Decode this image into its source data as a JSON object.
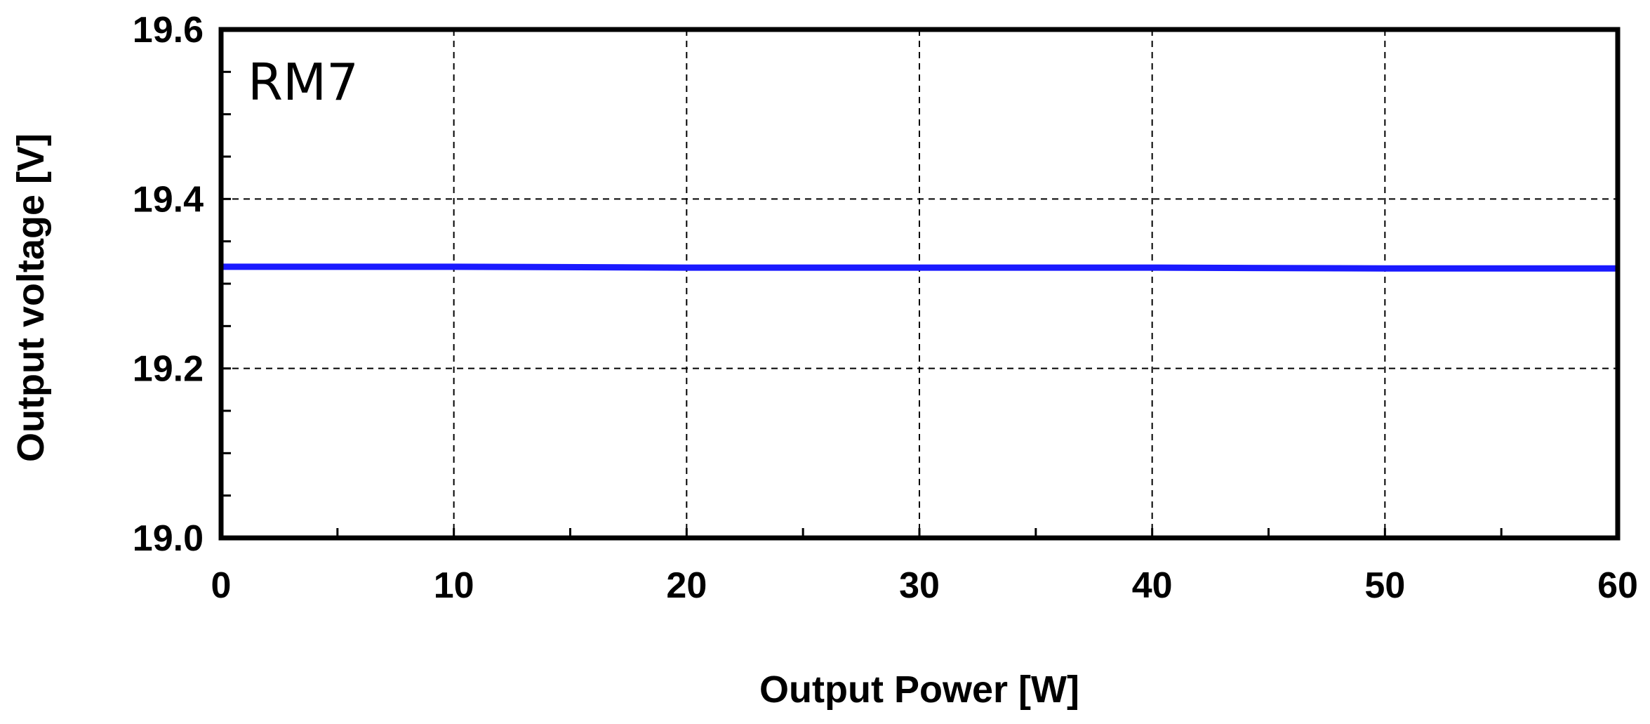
{
  "chart_data": {
    "type": "line",
    "title": "",
    "annotation": "RM7",
    "xlabel": "Output Power [W]",
    "ylabel": "Output voltage [V]",
    "xlim": [
      0,
      60
    ],
    "ylim": [
      19.0,
      19.6
    ],
    "x_ticks": [
      0,
      10,
      20,
      30,
      40,
      50,
      60
    ],
    "x_tick_labels": [
      "0",
      "10",
      "20",
      "30",
      "40",
      "50",
      "60"
    ],
    "y_ticks": [
      19.0,
      19.2,
      19.4,
      19.6
    ],
    "y_tick_labels": [
      "19.0",
      "19.2",
      "19.4",
      "19.6"
    ],
    "grid": true,
    "legend": "none",
    "series": [
      {
        "color": "#1a1aff",
        "x": [
          0,
          10,
          20,
          30,
          40,
          50,
          60
        ],
        "y": [
          19.32,
          19.32,
          19.319,
          19.319,
          19.319,
          19.318,
          19.318
        ]
      }
    ]
  }
}
